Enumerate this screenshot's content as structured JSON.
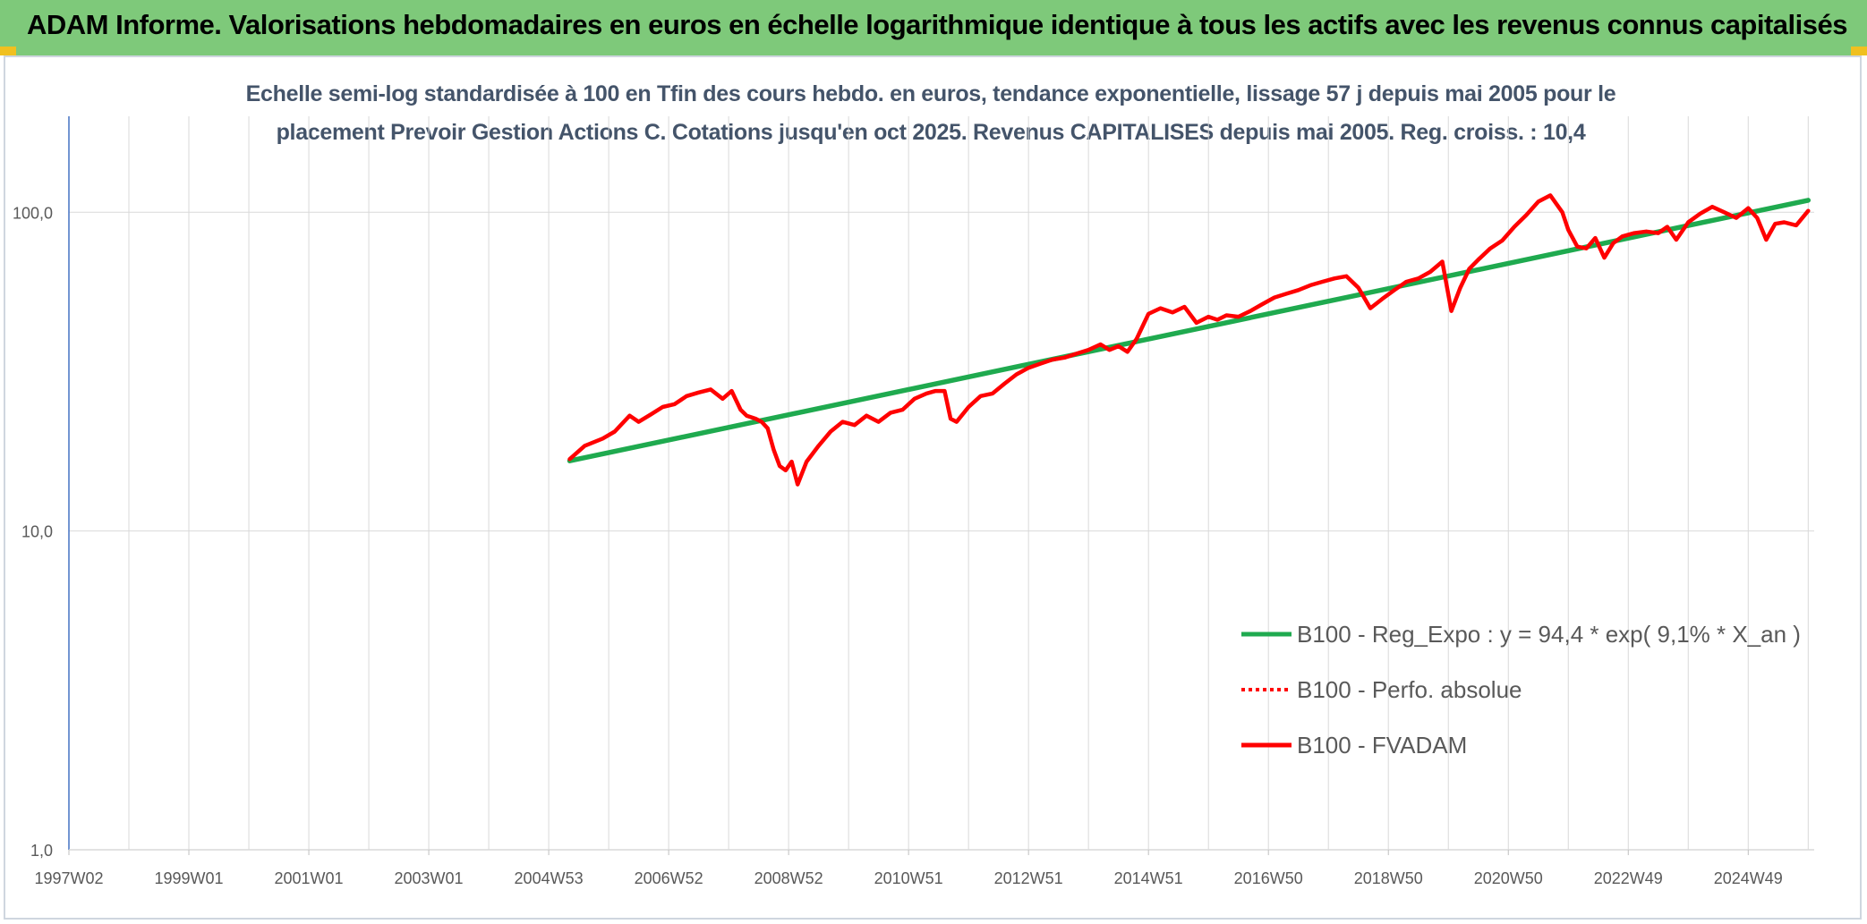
{
  "banner": {
    "title": "ADAM Informe. Valorisations hebdomadaires en euros en échelle logarithmique identique à tous les actifs avec les revenus connus capitalisés",
    "background": "#7ec97a"
  },
  "chart_data": {
    "type": "line",
    "title_line1": "Echelle semi-log standardisée à 100 en Tfin des cours hebdo. en euros, tendance exponentielle, lissage 57 j depuis mai 2005 pour le",
    "title_line2": "placement Prevoir Gestion Actions C. Cotations jusqu'en oct 2025. Revenus CAPITALISES depuis mai 2005. Reg. croiss. : 10,4",
    "y_scale": "log",
    "ylim": [
      1,
      200
    ],
    "y_ticks": [
      1,
      10,
      100
    ],
    "y_tick_labels": [
      "1,0",
      "10,0",
      "100,0"
    ],
    "xlim": [
      1997.0,
      2026.1
    ],
    "x_ticks": [
      1997.0,
      1999.0,
      2001.0,
      2003.0,
      2005.0,
      2007.0,
      2009.0,
      2011.0,
      2013.0,
      2015.0,
      2017.0,
      2019.0,
      2021.0,
      2023.0,
      2025.0
    ],
    "x_tick_labels": [
      "1997W02",
      "1999W01",
      "2001W01",
      "2003W01",
      "2004W53",
      "2006W52",
      "2008W52",
      "2010W51",
      "2012W51",
      "2014W51",
      "2016W50",
      "2018W50",
      "2020W50",
      "2022W49",
      "2024W49"
    ],
    "grid": true,
    "legend_position": "bottom-right",
    "series": [
      {
        "name": "B100 - Reg_Expo : y = 94,4 * exp( 9,1% *  X_an )",
        "color": "#1faa4f",
        "style": "solid",
        "x": [
          2005.35,
          2026.0
        ],
        "y": [
          16.6,
          109.0
        ]
      },
      {
        "name": "B100 - Perfo. absolue",
        "color": "#ff0000",
        "style": "dotted",
        "x": [],
        "y": []
      },
      {
        "name": "B100 - FVADAM",
        "color": "#ff0000",
        "style": "solid",
        "x": [
          2005.35,
          2005.6,
          2005.9,
          2006.1,
          2006.35,
          2006.5,
          2006.7,
          2006.9,
          2007.1,
          2007.3,
          2007.5,
          2007.7,
          2007.9,
          2008.05,
          2008.2,
          2008.3,
          2008.45,
          2008.55,
          2008.65,
          2008.75,
          2008.85,
          2008.95,
          2009.05,
          2009.15,
          2009.3,
          2009.5,
          2009.7,
          2009.9,
          2010.1,
          2010.3,
          2010.5,
          2010.7,
          2010.9,
          2011.1,
          2011.3,
          2011.45,
          2011.6,
          2011.7,
          2011.8,
          2012.0,
          2012.2,
          2012.4,
          2012.6,
          2012.8,
          2013.0,
          2013.2,
          2013.4,
          2013.6,
          2013.8,
          2014.0,
          2014.2,
          2014.35,
          2014.5,
          2014.65,
          2014.8,
          2015.0,
          2015.2,
          2015.4,
          2015.6,
          2015.8,
          2016.0,
          2016.15,
          2016.3,
          2016.5,
          2016.7,
          2016.9,
          2017.1,
          2017.3,
          2017.5,
          2017.7,
          2017.9,
          2018.1,
          2018.3,
          2018.5,
          2018.7,
          2018.9,
          2019.1,
          2019.3,
          2019.5,
          2019.7,
          2019.9,
          2020.05,
          2020.2,
          2020.35,
          2020.5,
          2020.7,
          2020.9,
          2021.1,
          2021.3,
          2021.5,
          2021.7,
          2021.9,
          2022.0,
          2022.15,
          2022.3,
          2022.45,
          2022.6,
          2022.75,
          2022.9,
          2023.1,
          2023.3,
          2023.5,
          2023.65,
          2023.8,
          2024.0,
          2024.2,
          2024.4,
          2024.6,
          2024.8,
          2025.0,
          2025.15,
          2025.3,
          2025.45,
          2025.6,
          2025.8,
          2026.0
        ],
        "y": [
          16.8,
          18.5,
          19.5,
          20.5,
          23.0,
          22.0,
          23.2,
          24.5,
          25.0,
          26.5,
          27.2,
          27.8,
          26.0,
          27.5,
          24.0,
          23.0,
          22.5,
          22.0,
          21.0,
          18.0,
          16.0,
          15.5,
          16.5,
          14.0,
          16.5,
          18.5,
          20.5,
          22.0,
          21.5,
          23.0,
          22.0,
          23.5,
          24.0,
          26.0,
          27.0,
          27.5,
          27.5,
          22.5,
          22.0,
          24.5,
          26.5,
          27.0,
          29.0,
          31.0,
          32.5,
          33.5,
          34.5,
          35.0,
          36.0,
          37.0,
          38.5,
          37.0,
          38.0,
          36.5,
          40.0,
          48.0,
          50.0,
          48.5,
          50.5,
          45.0,
          47.0,
          46.0,
          47.5,
          47.0,
          49.0,
          51.5,
          54.0,
          55.5,
          57.0,
          59.0,
          60.5,
          62.0,
          63.0,
          58.0,
          50.0,
          53.5,
          57.0,
          60.5,
          62.0,
          65.0,
          70.0,
          49.0,
          58.0,
          66.5,
          71.0,
          77.0,
          81.5,
          90.0,
          98.0,
          108.0,
          113.0,
          100.0,
          88.0,
          78.0,
          77.0,
          83.0,
          72.0,
          80.0,
          84.0,
          86.0,
          87.0,
          86.0,
          90.0,
          82.0,
          93.0,
          99.0,
          104.0,
          100.0,
          96.0,
          103.0,
          96.0,
          82.0,
          92.0,
          93.0,
          91.0,
          101.0
        ]
      }
    ]
  }
}
